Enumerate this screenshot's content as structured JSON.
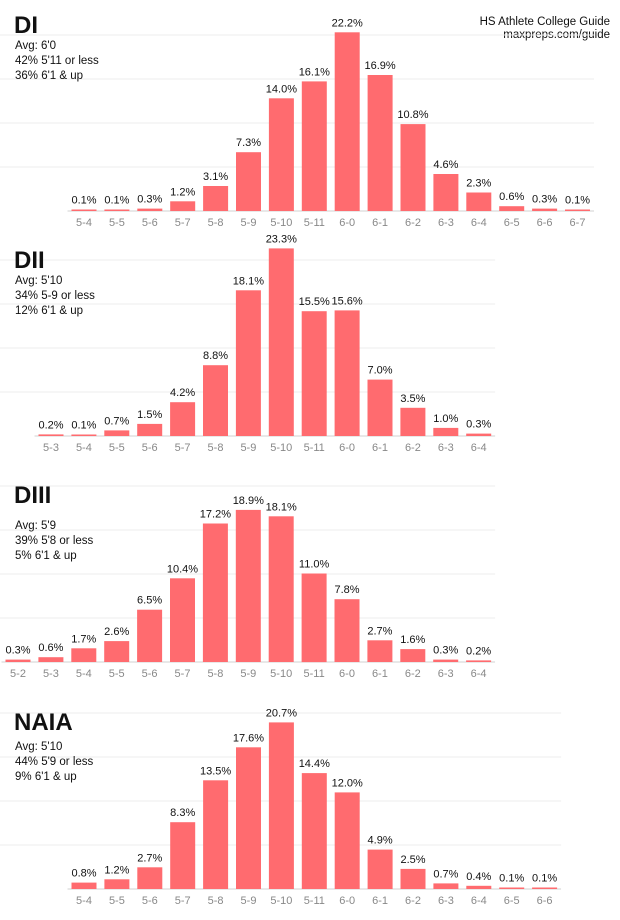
{
  "source": {
    "line1": "HS Athlete College Guide",
    "line2": "maxpreps.com/guide"
  },
  "colors": {
    "bar": "#ff6b6f",
    "grid": "#ececec",
    "tick": "#888888"
  },
  "chart_data": [
    {
      "type": "bar",
      "title": "DI",
      "stats": [
        "Avg: 6'0",
        "42% 5'11 or less",
        "36% 6'1 & up"
      ],
      "categories": [
        "5-4",
        "5-5",
        "5-6",
        "5-7",
        "5-8",
        "5-9",
        "5-10",
        "5-11",
        "6-0",
        "6-1",
        "6-2",
        "6-3",
        "6-4",
        "6-5",
        "6-6",
        "6-7"
      ],
      "values": [
        0.1,
        0.1,
        0.3,
        1.2,
        3.1,
        7.3,
        14.0,
        16.1,
        22.2,
        16.9,
        10.8,
        4.6,
        2.3,
        0.6,
        0.3,
        0.1
      ],
      "labels": [
        "0.1%",
        "0.1%",
        "0.3%",
        "1.2%",
        "3.1%",
        "7.3%",
        "14.0%",
        "16.1%",
        "22.2%",
        "16.9%",
        "10.8%",
        "4.6%",
        "2.3%",
        "0.6%",
        "0.3%",
        "0.1%"
      ],
      "grid": true
    },
    {
      "type": "bar",
      "title": "DII",
      "stats": [
        "Avg: 5'10",
        "34% 5-9 or less",
        "12% 6'1 & up"
      ],
      "categories": [
        "5-3",
        "5-4",
        "5-5",
        "5-6",
        "5-7",
        "5-8",
        "5-9",
        "5-10",
        "5-11",
        "6-0",
        "6-1",
        "6-2",
        "6-3",
        "6-4"
      ],
      "values": [
        0.2,
        0.1,
        0.7,
        1.5,
        4.2,
        8.8,
        18.1,
        23.3,
        15.5,
        15.6,
        7.0,
        3.5,
        1.0,
        0.3
      ],
      "labels": [
        "0.2%",
        "0.1%",
        "0.7%",
        "1.5%",
        "4.2%",
        "8.8%",
        "18.1%",
        "23.3%",
        "15.5%",
        "15.6%",
        "7.0%",
        "3.5%",
        "1.0%",
        "0.3%"
      ],
      "grid": true
    },
    {
      "type": "bar",
      "title": "DIII",
      "stats": [
        "Avg: 5'9",
        "39% 5'8 or less",
        "5% 6'1 & up"
      ],
      "categories": [
        "5-2",
        "5-3",
        "5-4",
        "5-5",
        "5-6",
        "5-7",
        "5-8",
        "5-9",
        "5-10",
        "5-11",
        "6-0",
        "6-1",
        "6-2",
        "6-3",
        "6-4"
      ],
      "values": [
        0.3,
        0.6,
        1.7,
        2.6,
        6.5,
        10.4,
        17.2,
        18.9,
        18.1,
        11.0,
        7.8,
        2.7,
        1.6,
        0.3,
        0.2
      ],
      "labels": [
        "0.3%",
        "0.6%",
        "1.7%",
        "2.6%",
        "6.5%",
        "10.4%",
        "17.2%",
        "18.9%",
        "18.1%",
        "11.0%",
        "7.8%",
        "2.7%",
        "1.6%",
        "0.3%",
        "0.2%"
      ],
      "grid": true
    },
    {
      "type": "bar",
      "title": "NAIA",
      "stats": [
        "Avg: 5'10",
        "44% 5'9 or less",
        "9% 6'1 & up"
      ],
      "categories": [
        "5-4",
        "5-5",
        "5-6",
        "5-7",
        "5-8",
        "5-9",
        "5-10",
        "5-11",
        "6-0",
        "6-1",
        "6-2",
        "6-3",
        "6-4",
        "6-5",
        "6-6"
      ],
      "values": [
        0.8,
        1.2,
        2.7,
        8.3,
        13.5,
        17.6,
        20.7,
        14.4,
        12.0,
        4.9,
        2.5,
        0.7,
        0.4,
        0.1,
        0.1
      ],
      "labels": [
        "0.8%",
        "1.2%",
        "2.7%",
        "8.3%",
        "13.5%",
        "17.6%",
        "20.7%",
        "14.4%",
        "12.0%",
        "4.9%",
        "2.5%",
        "0.7%",
        "0.4%",
        "0.1%",
        "0.1%"
      ],
      "grid": true
    }
  ]
}
